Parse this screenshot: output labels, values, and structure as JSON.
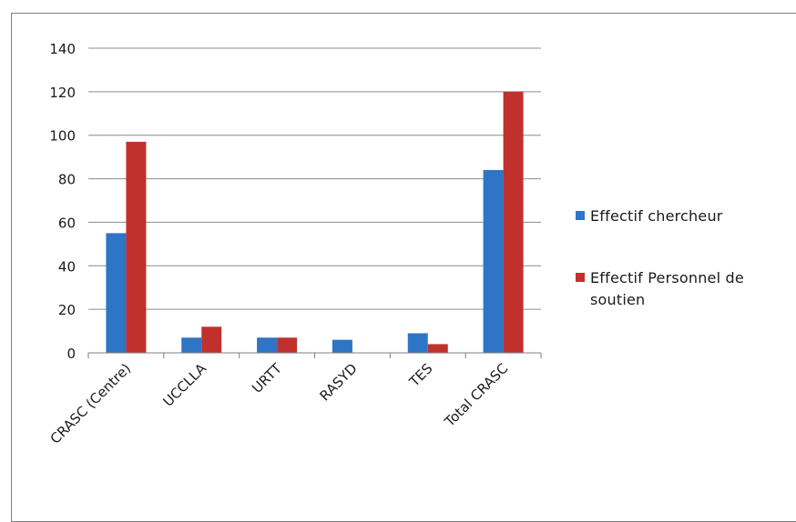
{
  "chart_data": {
    "type": "bar",
    "categories": [
      "CRASC (Centre)",
      "UCCLLA",
      "URTT",
      "RASYD",
      "TES",
      "Total CRASC"
    ],
    "series": [
      {
        "name": "Effectif chercheur",
        "values": [
          55,
          7,
          7,
          6,
          9,
          84
        ],
        "color": "#2e75c8"
      },
      {
        "name": "Effectif Personnel de soutien",
        "values": [
          97,
          12,
          7,
          0,
          4,
          120
        ],
        "color": "#c0312e"
      }
    ],
    "yticks": [
      0,
      20,
      40,
      60,
      80,
      100,
      120,
      140
    ],
    "ylim": [
      0,
      140
    ],
    "grid": true,
    "legend_position": "right",
    "title": "",
    "xlabel": "",
    "ylabel": ""
  }
}
